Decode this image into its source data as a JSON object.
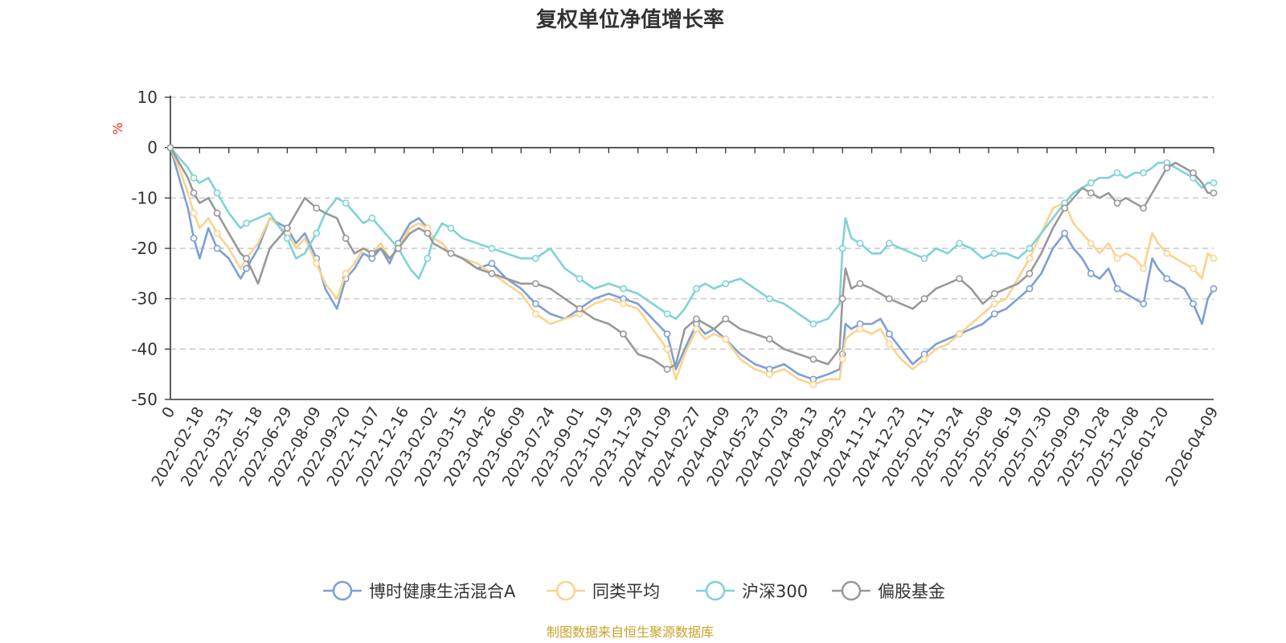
{
  "chart_data": {
    "type": "line",
    "title": "复权单位净值增长率",
    "ylabel": "%",
    "xlabel": "",
    "ylim": [
      -50,
      10
    ],
    "yticks": [
      10,
      0,
      -10,
      -20,
      -30,
      -40,
      -50
    ],
    "x_tick_labels": [
      "0",
      "2022-02-18",
      "2022-03-31",
      "2022-05-18",
      "2022-06-29",
      "2022-08-09",
      "2022-09-20",
      "2022-11-07",
      "2022-12-16",
      "2023-02-02",
      "2023-03-15",
      "2023-04-26",
      "2023-06-09",
      "2023-07-24",
      "2023-09-01",
      "2023-10-19",
      "2023-11-29",
      "2024-01-09",
      "2024-02-27",
      "2024-04-09",
      "2024-05-23",
      "2024-07-03",
      "2024-08-13",
      "2024-09-25",
      "2024-11-12",
      "2024-12-23",
      "2025-02-11",
      "2025-03-24",
      "2025-05-08",
      "2025-06-19",
      "2025-07-30",
      "2025-09-09",
      "2025-10-28",
      "2025-12-08",
      "2026-01-20",
      "2026-04-09"
    ],
    "x_tick_index": [
      0,
      1,
      2,
      3,
      4,
      5,
      6,
      7,
      8,
      9,
      10,
      11,
      12,
      13,
      14,
      15,
      16,
      17,
      18,
      19,
      20,
      21,
      22,
      23,
      24,
      25,
      26,
      27,
      28,
      29,
      30,
      31,
      32,
      33,
      34,
      35.7
    ],
    "x_max": 35.7,
    "grid": true,
    "legend_position": "bottom-center",
    "series": [
      {
        "name": "博时健康生活混合A",
        "color": "#7c9fd7",
        "x": [
          0,
          0.3,
          0.6,
          0.8,
          1.0,
          1.3,
          1.6,
          2.0,
          2.4,
          2.6,
          3.0,
          3.4,
          4.0,
          4.3,
          4.6,
          5.0,
          5.3,
          5.7,
          6.0,
          6.3,
          6.6,
          6.9,
          7.2,
          7.5,
          7.8,
          8.2,
          8.5,
          8.8,
          9.0,
          9.3,
          9.6,
          10.0,
          10.5,
          11.0,
          11.5,
          12.0,
          12.5,
          13.0,
          13.5,
          14.0,
          14.5,
          15.0,
          15.5,
          16.0,
          16.5,
          17.0,
          17.3,
          17.6,
          18.0,
          18.3,
          18.6,
          19.0,
          19.5,
          20.0,
          20.5,
          21.0,
          21.5,
          22.0,
          22.5,
          22.9,
          23.0,
          23.1,
          23.3,
          23.6,
          24.0,
          24.3,
          24.6,
          25.0,
          25.4,
          25.8,
          26.2,
          26.6,
          27.0,
          27.4,
          27.8,
          28.2,
          28.6,
          29.0,
          29.4,
          29.8,
          30.2,
          30.6,
          30.9,
          31.2,
          31.5,
          31.8,
          32.1,
          32.4,
          32.7,
          33.0,
          33.3,
          33.6,
          33.8,
          34.1,
          34.4,
          34.7,
          35.0,
          35.3,
          35.5,
          35.7
        ],
        "y": [
          0,
          -6,
          -12,
          -18,
          -22,
          -16,
          -20,
          -22,
          -26,
          -24,
          -20,
          -14,
          -16,
          -19,
          -17,
          -22,
          -28,
          -32,
          -26,
          -24,
          -21,
          -22,
          -20,
          -23,
          -19,
          -15,
          -14,
          -16,
          -18,
          -19,
          -21,
          -22,
          -24,
          -23,
          -26,
          -28,
          -31,
          -33,
          -34,
          -32,
          -30,
          -29,
          -30,
          -31,
          -34,
          -37,
          -44,
          -40,
          -35,
          -37,
          -36,
          -38,
          -41,
          -43,
          -44,
          -43,
          -45,
          -46,
          -45,
          -44,
          -41,
          -35,
          -36,
          -35,
          -35,
          -34,
          -37,
          -40,
          -43,
          -41,
          -39,
          -38,
          -37,
          -36,
          -35,
          -33,
          -32,
          -30,
          -28,
          -25,
          -20,
          -17,
          -20,
          -22,
          -25,
          -26,
          -24,
          -28,
          -29,
          -30,
          -31,
          -22,
          -24,
          -26,
          -27,
          -28,
          -31,
          -35,
          -30,
          -28
        ]
      },
      {
        "name": "同类平均",
        "color": "#fbd38d",
        "x": [
          0,
          0.3,
          0.6,
          0.8,
          1.0,
          1.3,
          1.6,
          2.0,
          2.4,
          2.6,
          3.0,
          3.4,
          4.0,
          4.3,
          4.6,
          5.0,
          5.3,
          5.7,
          6.0,
          6.3,
          6.6,
          6.9,
          7.2,
          7.5,
          7.8,
          8.2,
          8.5,
          8.8,
          9.0,
          9.3,
          9.6,
          10.0,
          10.5,
          11.0,
          11.5,
          12.0,
          12.5,
          13.0,
          13.5,
          14.0,
          14.5,
          15.0,
          15.5,
          16.0,
          16.5,
          17.0,
          17.3,
          17.6,
          18.0,
          18.3,
          18.6,
          19.0,
          19.5,
          20.0,
          20.5,
          21.0,
          21.5,
          22.0,
          22.5,
          22.9,
          23.0,
          23.1,
          23.3,
          23.6,
          24.0,
          24.3,
          24.6,
          25.0,
          25.4,
          25.8,
          26.2,
          26.6,
          27.0,
          27.4,
          27.8,
          28.2,
          28.6,
          29.0,
          29.4,
          29.8,
          30.2,
          30.6,
          30.9,
          31.2,
          31.5,
          31.8,
          32.1,
          32.4,
          32.7,
          33.0,
          33.3,
          33.6,
          33.8,
          34.1,
          34.4,
          34.7,
          35.0,
          35.3,
          35.5,
          35.7
        ],
        "y": [
          0,
          -4,
          -9,
          -13,
          -16,
          -14,
          -17,
          -20,
          -24,
          -22,
          -19,
          -14,
          -17,
          -20,
          -18,
          -23,
          -27,
          -30,
          -25,
          -23,
          -20,
          -21,
          -19,
          -22,
          -20,
          -16,
          -15,
          -16,
          -18,
          -19,
          -21,
          -22,
          -23,
          -25,
          -27,
          -29,
          -33,
          -35,
          -34,
          -33,
          -31,
          -30,
          -31,
          -32,
          -36,
          -40,
          -46,
          -41,
          -36,
          -38,
          -37,
          -38,
          -42,
          -44,
          -45,
          -44,
          -46,
          -47,
          -46,
          -46,
          -42,
          -38,
          -37,
          -36,
          -37,
          -36,
          -39,
          -42,
          -44,
          -42,
          -40,
          -39,
          -37,
          -35,
          -33,
          -31,
          -30,
          -26,
          -22,
          -17,
          -12,
          -11,
          -15,
          -17,
          -19,
          -21,
          -19,
          -22,
          -21,
          -22,
          -24,
          -17,
          -19,
          -21,
          -22,
          -23,
          -24,
          -26,
          -21,
          -22
        ]
      },
      {
        "name": "沪深300",
        "color": "#7fd3d6",
        "x": [
          0,
          0.3,
          0.6,
          0.8,
          1.0,
          1.3,
          1.6,
          2.0,
          2.4,
          2.6,
          3.0,
          3.4,
          4.0,
          4.3,
          4.6,
          5.0,
          5.3,
          5.7,
          6.0,
          6.3,
          6.6,
          6.9,
          7.2,
          7.5,
          7.8,
          8.2,
          8.5,
          8.8,
          9.0,
          9.3,
          9.6,
          10.0,
          10.5,
          11.0,
          11.5,
          12.0,
          12.5,
          13.0,
          13.5,
          14.0,
          14.5,
          15.0,
          15.5,
          16.0,
          16.5,
          17.0,
          17.3,
          17.6,
          18.0,
          18.3,
          18.6,
          19.0,
          19.5,
          20.0,
          20.5,
          21.0,
          21.5,
          22.0,
          22.5,
          22.9,
          23.0,
          23.1,
          23.3,
          23.6,
          24.0,
          24.3,
          24.6,
          25.0,
          25.4,
          25.8,
          26.2,
          26.6,
          27.0,
          27.4,
          27.8,
          28.2,
          28.6,
          29.0,
          29.4,
          29.8,
          30.2,
          30.6,
          30.9,
          31.2,
          31.5,
          31.8,
          32.1,
          32.4,
          32.7,
          33.0,
          33.3,
          33.6,
          33.8,
          34.1,
          34.4,
          34.7,
          35.0,
          35.3,
          35.5,
          35.7
        ],
        "y": [
          0,
          -2,
          -4,
          -6,
          -7,
          -6,
          -9,
          -13,
          -16,
          -15,
          -14,
          -13,
          -18,
          -22,
          -21,
          -17,
          -13,
          -10,
          -11,
          -13,
          -15,
          -14,
          -16,
          -18,
          -20,
          -24,
          -26,
          -22,
          -18,
          -15,
          -16,
          -18,
          -19,
          -20,
          -21,
          -22,
          -22,
          -20,
          -24,
          -26,
          -28,
          -27,
          -28,
          -29,
          -31,
          -33,
          -34,
          -32,
          -28,
          -27,
          -28,
          -27,
          -26,
          -28,
          -30,
          -31,
          -33,
          -35,
          -34,
          -31,
          -20,
          -14,
          -18,
          -19,
          -21,
          -21,
          -19,
          -20,
          -21,
          -22,
          -20,
          -21,
          -19,
          -20,
          -22,
          -21,
          -21,
          -22,
          -20,
          -17,
          -14,
          -11,
          -9,
          -8,
          -7,
          -6,
          -6,
          -5,
          -6,
          -5,
          -5,
          -4,
          -3,
          -3,
          -4,
          -5,
          -6,
          -8,
          -7,
          -7
        ]
      },
      {
        "name": "偏股基金",
        "color": "#999999",
        "x": [
          0,
          0.3,
          0.6,
          0.8,
          1.0,
          1.3,
          1.6,
          2.0,
          2.4,
          2.6,
          3.0,
          3.4,
          4.0,
          4.3,
          4.6,
          5.0,
          5.3,
          5.7,
          6.0,
          6.3,
          6.6,
          6.9,
          7.2,
          7.5,
          7.8,
          8.2,
          8.5,
          8.8,
          9.0,
          9.3,
          9.6,
          10.0,
          10.5,
          11.0,
          11.5,
          12.0,
          12.5,
          13.0,
          13.5,
          14.0,
          14.5,
          15.0,
          15.5,
          16.0,
          16.5,
          17.0,
          17.3,
          17.6,
          18.0,
          18.3,
          18.6,
          19.0,
          19.5,
          20.0,
          20.5,
          21.0,
          21.5,
          22.0,
          22.5,
          22.9,
          23.0,
          23.1,
          23.3,
          23.6,
          24.0,
          24.3,
          24.6,
          25.0,
          25.4,
          25.8,
          26.2,
          26.6,
          27.0,
          27.4,
          27.8,
          28.2,
          28.6,
          29.0,
          29.4,
          29.8,
          30.2,
          30.6,
          30.9,
          31.2,
          31.5,
          31.8,
          32.1,
          32.4,
          32.7,
          33.0,
          33.3,
          33.6,
          33.8,
          34.1,
          34.4,
          34.7,
          35.0,
          35.3,
          35.5,
          35.7
        ],
        "y": [
          0,
          -3,
          -6,
          -9,
          -11,
          -10,
          -13,
          -17,
          -21,
          -22,
          -27,
          -20,
          -16,
          -13,
          -10,
          -12,
          -13,
          -14,
          -18,
          -21,
          -20,
          -21,
          -20,
          -22,
          -20,
          -17,
          -16,
          -17,
          -19,
          -20,
          -21,
          -22,
          -24,
          -25,
          -26,
          -27,
          -27,
          -28,
          -30,
          -32,
          -34,
          -35,
          -37,
          -41,
          -42,
          -44,
          -43,
          -36,
          -34,
          -35,
          -36,
          -34,
          -36,
          -37,
          -38,
          -40,
          -41,
          -42,
          -43,
          -40,
          -30,
          -24,
          -28,
          -27,
          -28,
          -29,
          -30,
          -31,
          -32,
          -30,
          -28,
          -27,
          -26,
          -28,
          -31,
          -29,
          -28,
          -27,
          -25,
          -21,
          -16,
          -12,
          -10,
          -8,
          -9,
          -10,
          -9,
          -11,
          -10,
          -11,
          -12,
          -9,
          -7,
          -4,
          -3,
          -4,
          -5,
          -7,
          -9,
          -9
        ]
      }
    ]
  },
  "unit_label": "%",
  "source_text": "制图数据来自恒生聚源数据库"
}
